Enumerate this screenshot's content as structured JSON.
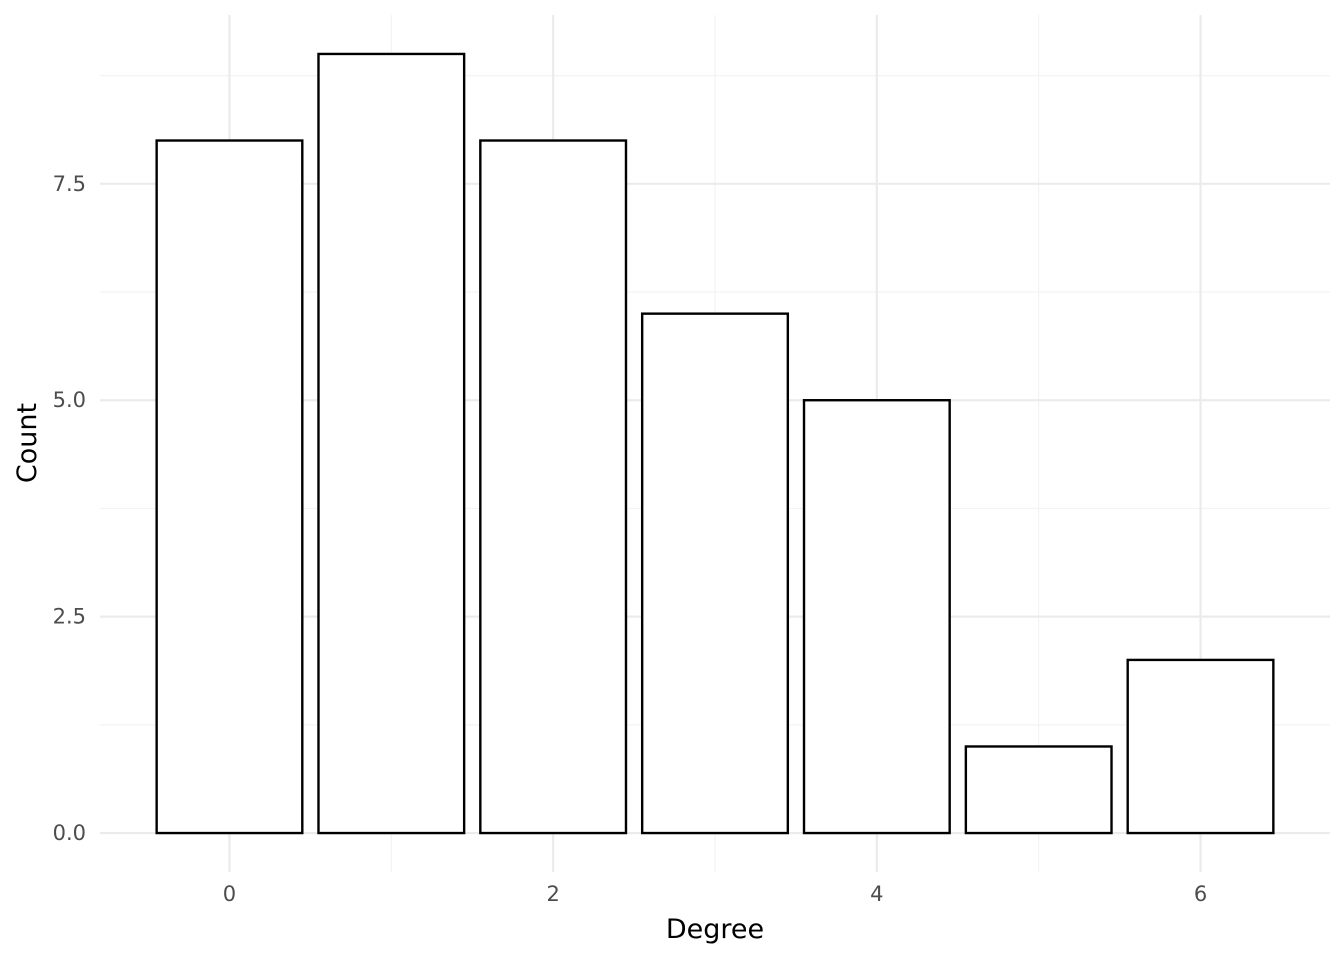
{
  "chart_data": {
    "type": "bar",
    "title": "",
    "xlabel": "Degree",
    "ylabel": "Count",
    "categories": [
      0,
      1,
      2,
      3,
      4,
      5,
      6
    ],
    "values": [
      8,
      9,
      8,
      6,
      5,
      1,
      2
    ],
    "x_ticks": [
      "0",
      "2",
      "4",
      "6"
    ],
    "y_ticks": [
      "0.0",
      "2.5",
      "5.0",
      "7.5"
    ],
    "xlim": [
      -0.8,
      6.8
    ],
    "ylim": [
      -0.45,
      9.45
    ],
    "grid": true,
    "legend": "none",
    "colors": {
      "bar_fill": "#ffffff",
      "bar_stroke": "#000000",
      "grid": "#ebebeb",
      "tick_text": "#4d4d4d"
    }
  }
}
